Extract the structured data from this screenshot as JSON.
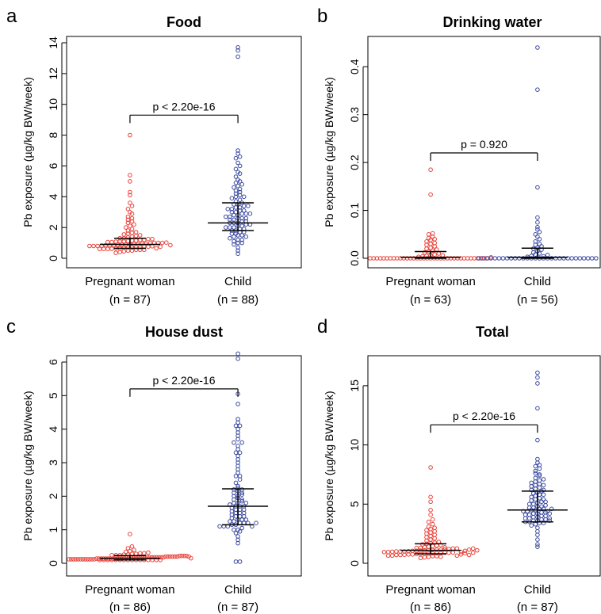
{
  "chart_data": [
    {
      "type": "scatter",
      "panel_letter": "a",
      "title": "Food",
      "ylabel": "Pb exposure (µg/kg BW/week)",
      "ylim": [
        0,
        14
      ],
      "yticks": [
        0,
        2,
        4,
        6,
        8,
        10,
        12,
        14
      ],
      "categories": [
        "Pregnant woman",
        "Child"
      ],
      "n_labels": [
        "(n = 87)",
        "(n = 88)"
      ],
      "p_value": "p < 2.20e-16",
      "series": [
        {
          "color": "#e8433a",
          "median": 0.9,
          "q1": 0.65,
          "q3": 1.3,
          "values": [
            0.35,
            0.4,
            0.45,
            0.5,
            0.5,
            0.55,
            0.55,
            0.6,
            0.6,
            0.6,
            0.62,
            0.65,
            0.65,
            0.68,
            0.7,
            0.7,
            0.72,
            0.72,
            0.75,
            0.75,
            0.78,
            0.8,
            0.8,
            0.8,
            0.82,
            0.85,
            0.85,
            0.85,
            0.88,
            0.9,
            0.9,
            0.9,
            0.92,
            0.92,
            0.95,
            0.95,
            0.98,
            1.0,
            1.0,
            1.0,
            1.02,
            1.05,
            1.05,
            1.08,
            1.1,
            1.1,
            1.12,
            1.15,
            1.15,
            1.2,
            1.2,
            1.25,
            1.25,
            1.3,
            1.3,
            1.35,
            1.4,
            1.45,
            1.5,
            1.55,
            1.6,
            1.65,
            1.7,
            1.8,
            1.9,
            2.0,
            2.1,
            2.2,
            2.3,
            2.4,
            2.5,
            2.6,
            2.7,
            2.9,
            3.0,
            3.2,
            3.4,
            3.6,
            4.1,
            4.3,
            5.0,
            5.4,
            8.0,
            0.55,
            0.65,
            0.75,
            0.85
          ]
        },
        {
          "color": "#3b4aa0",
          "median": 2.3,
          "q1": 1.8,
          "q3": 3.6,
          "values": [
            0.3,
            0.5,
            0.7,
            0.9,
            1.0,
            1.1,
            1.2,
            1.3,
            1.4,
            1.5,
            1.5,
            1.6,
            1.6,
            1.7,
            1.7,
            1.8,
            1.8,
            1.9,
            1.9,
            2.0,
            2.0,
            2.0,
            2.1,
            2.1,
            2.2,
            2.2,
            2.3,
            2.3,
            2.3,
            2.4,
            2.4,
            2.5,
            2.5,
            2.6,
            2.6,
            2.7,
            2.7,
            2.8,
            2.8,
            2.9,
            2.9,
            3.0,
            3.0,
            3.1,
            3.1,
            3.2,
            3.2,
            3.3,
            3.3,
            3.4,
            3.5,
            3.5,
            3.6,
            3.7,
            3.8,
            3.9,
            4.0,
            4.1,
            4.2,
            4.3,
            4.4,
            4.5,
            4.6,
            4.7,
            4.8,
            4.9,
            5.0,
            5.1,
            5.3,
            5.5,
            5.6,
            5.8,
            6.0,
            6.2,
            6.5,
            6.8,
            7.0,
            1.2,
            1.4,
            2.6,
            2.9,
            3.4,
            4.0,
            1.0,
            13.1,
            13.5,
            13.7,
            6.6
          ]
        }
      ]
    },
    {
      "type": "scatter",
      "panel_letter": "b",
      "title": "Drinking water",
      "ylabel": "Pb exposure (µg/kg BW/week)",
      "ylim": [
        0,
        0.45
      ],
      "yticks": [
        0.0,
        0.1,
        0.2,
        0.3,
        0.4
      ],
      "ytick_labels": [
        "0.0",
        "0.1",
        "0.2",
        "0.3",
        "0.4"
      ],
      "categories": [
        "Pregnant woman",
        "Child"
      ],
      "n_labels": [
        "(n = 63)",
        "(n = 56)"
      ],
      "p_value": "p = 0.920",
      "series": [
        {
          "color": "#e8433a",
          "median": 0.002,
          "q1": 0.0,
          "q3": 0.014,
          "values": [
            0,
            0,
            0,
            0,
            0,
            0,
            0,
            0,
            0,
            0,
            0,
            0,
            0,
            0,
            0,
            0,
            0,
            0,
            0,
            0,
            0,
            0,
            0,
            0,
            0,
            0,
            0,
            0,
            0,
            0,
            0,
            0,
            0,
            0,
            0,
            0,
            0.002,
            0.003,
            0.004,
            0.005,
            0.006,
            0.008,
            0.01,
            0.012,
            0.014,
            0.016,
            0.018,
            0.02,
            0.022,
            0.025,
            0.028,
            0.03,
            0.032,
            0.035,
            0.038,
            0.04,
            0.042,
            0.045,
            0.05,
            0.052,
            0.133,
            0.185,
            0.006
          ]
        },
        {
          "color": "#3b4aa0",
          "median": 0.002,
          "q1": 0.0,
          "q3": 0.021,
          "values": [
            0,
            0,
            0,
            0,
            0,
            0,
            0,
            0,
            0,
            0,
            0,
            0,
            0,
            0,
            0,
            0,
            0,
            0,
            0,
            0,
            0,
            0,
            0,
            0,
            0,
            0,
            0,
            0,
            0,
            0,
            0.003,
            0.005,
            0.008,
            0.01,
            0.012,
            0.015,
            0.018,
            0.02,
            0.022,
            0.025,
            0.028,
            0.03,
            0.035,
            0.04,
            0.045,
            0.05,
            0.055,
            0.06,
            0.065,
            0.075,
            0.085,
            0.148,
            0.352,
            0.44,
            0.004,
            0.007
          ]
        }
      ]
    },
    {
      "type": "scatter",
      "panel_letter": "c",
      "title": "House dust",
      "ylabel": "Pb exposure (µg/kg BW/week)",
      "ylim": [
        0,
        6
      ],
      "yticks": [
        0,
        1,
        2,
        3,
        4,
        5,
        6
      ],
      "categories": [
        "Pregnant woman",
        "Child"
      ],
      "n_labels": [
        "(n = 86)",
        "(n = 87)"
      ],
      "p_value": "p < 2.20e-16",
      "series": [
        {
          "color": "#e8433a",
          "median": 0.15,
          "q1": 0.1,
          "q3": 0.23,
          "values": [
            0.1,
            0.1,
            0.1,
            0.1,
            0.1,
            0.1,
            0.1,
            0.1,
            0.1,
            0.1,
            0.1,
            0.1,
            0.1,
            0.1,
            0.1,
            0.1,
            0.12,
            0.12,
            0.12,
            0.12,
            0.12,
            0.12,
            0.12,
            0.12,
            0.12,
            0.12,
            0.12,
            0.12,
            0.14,
            0.14,
            0.14,
            0.14,
            0.14,
            0.14,
            0.14,
            0.14,
            0.14,
            0.14,
            0.14,
            0.14,
            0.16,
            0.16,
            0.16,
            0.16,
            0.16,
            0.16,
            0.16,
            0.16,
            0.16,
            0.16,
            0.18,
            0.18,
            0.18,
            0.18,
            0.18,
            0.18,
            0.18,
            0.18,
            0.2,
            0.2,
            0.2,
            0.2,
            0.2,
            0.2,
            0.22,
            0.22,
            0.22,
            0.22,
            0.24,
            0.24,
            0.24,
            0.26,
            0.26,
            0.28,
            0.28,
            0.3,
            0.3,
            0.32,
            0.34,
            0.36,
            0.4,
            0.45,
            0.5,
            0.2,
            0.15,
            0.87
          ]
        },
        {
          "color": "#3b4aa0",
          "median": 1.7,
          "q1": 1.15,
          "q3": 2.22,
          "values": [
            0.05,
            0.05,
            0.6,
            0.7,
            0.8,
            0.9,
            0.95,
            1.0,
            1.0,
            1.05,
            1.1,
            1.1,
            1.1,
            1.15,
            1.15,
            1.2,
            1.2,
            1.2,
            1.25,
            1.25,
            1.3,
            1.3,
            1.35,
            1.4,
            1.4,
            1.45,
            1.5,
            1.5,
            1.55,
            1.6,
            1.6,
            1.65,
            1.7,
            1.7,
            1.75,
            1.8,
            1.8,
            1.85,
            1.9,
            1.95,
            2.0,
            2.0,
            2.05,
            2.1,
            2.15,
            2.2,
            2.25,
            2.3,
            2.4,
            2.5,
            2.6,
            2.7,
            2.8,
            2.9,
            3.0,
            3.1,
            3.2,
            3.3,
            3.4,
            3.5,
            3.6,
            3.7,
            3.8,
            3.9,
            4.0,
            4.1,
            4.2,
            4.3,
            4.75,
            5.05,
            6.1,
            6.25,
            1.1,
            1.3,
            1.5,
            1.7,
            1.9,
            2.1,
            1.2,
            1.4,
            1.6,
            1.8,
            2.2,
            2.6,
            3.3,
            3.6,
            4.1
          ]
        }
      ]
    },
    {
      "type": "scatter",
      "panel_letter": "d",
      "title": "Total",
      "ylabel": "Pb exposure (µg/kg BW/week)",
      "ylim": [
        0,
        17
      ],
      "yticks": [
        0,
        5,
        10,
        15
      ],
      "categories": [
        "Pregnant woman",
        "Child"
      ],
      "n_labels": [
        "(n = 86)",
        "(n = 87)"
      ],
      "p_value": "p < 2.20e-16",
      "series": [
        {
          "color": "#e8433a",
          "median": 1.1,
          "q1": 0.8,
          "q3": 1.65,
          "values": [
            0.45,
            0.5,
            0.55,
            0.6,
            0.6,
            0.65,
            0.65,
            0.7,
            0.7,
            0.72,
            0.75,
            0.75,
            0.78,
            0.8,
            0.8,
            0.82,
            0.85,
            0.85,
            0.88,
            0.9,
            0.9,
            0.92,
            0.95,
            0.95,
            0.98,
            1.0,
            1.0,
            1.0,
            1.02,
            1.05,
            1.05,
            1.08,
            1.1,
            1.1,
            1.12,
            1.15,
            1.15,
            1.2,
            1.2,
            1.25,
            1.25,
            1.3,
            1.3,
            1.35,
            1.4,
            1.45,
            1.5,
            1.55,
            1.6,
            1.65,
            1.7,
            1.75,
            1.8,
            1.9,
            2.0,
            2.1,
            2.2,
            2.3,
            2.4,
            2.5,
            2.6,
            2.7,
            2.8,
            2.9,
            3.0,
            3.1,
            3.3,
            3.5,
            3.7,
            4.1,
            4.5,
            5.2,
            5.6,
            8.1,
            0.55,
            0.65,
            0.75,
            0.85,
            0.95,
            1.05,
            1.15,
            1.25,
            1.35,
            0.7,
            0.9,
            1.1
          ]
        },
        {
          "color": "#3b4aa0",
          "median": 4.5,
          "q1": 3.5,
          "q3": 6.1,
          "values": [
            1.4,
            1.6,
            2.0,
            2.4,
            2.7,
            3.0,
            3.2,
            3.3,
            3.4,
            3.5,
            3.5,
            3.6,
            3.6,
            3.7,
            3.7,
            3.8,
            3.8,
            3.9,
            3.9,
            4.0,
            4.0,
            4.1,
            4.1,
            4.2,
            4.2,
            4.3,
            4.3,
            4.4,
            4.4,
            4.5,
            4.5,
            4.6,
            4.6,
            4.7,
            4.7,
            4.8,
            4.8,
            4.9,
            5.0,
            5.0,
            5.1,
            5.2,
            5.3,
            5.4,
            5.5,
            5.6,
            5.7,
            5.8,
            5.9,
            6.0,
            6.1,
            6.2,
            6.3,
            6.4,
            6.5,
            6.6,
            6.7,
            6.8,
            6.9,
            7.0,
            7.2,
            7.4,
            7.6,
            7.8,
            8.0,
            8.2,
            8.5,
            8.8,
            10.4,
            13.1,
            15.2,
            15.7,
            16.1,
            3.4,
            3.6,
            3.8,
            4.2,
            4.4,
            4.6,
            5.2,
            5.4,
            5.8,
            6.2,
            6.6,
            7.1,
            7.5,
            8.3
          ]
        }
      ]
    }
  ]
}
